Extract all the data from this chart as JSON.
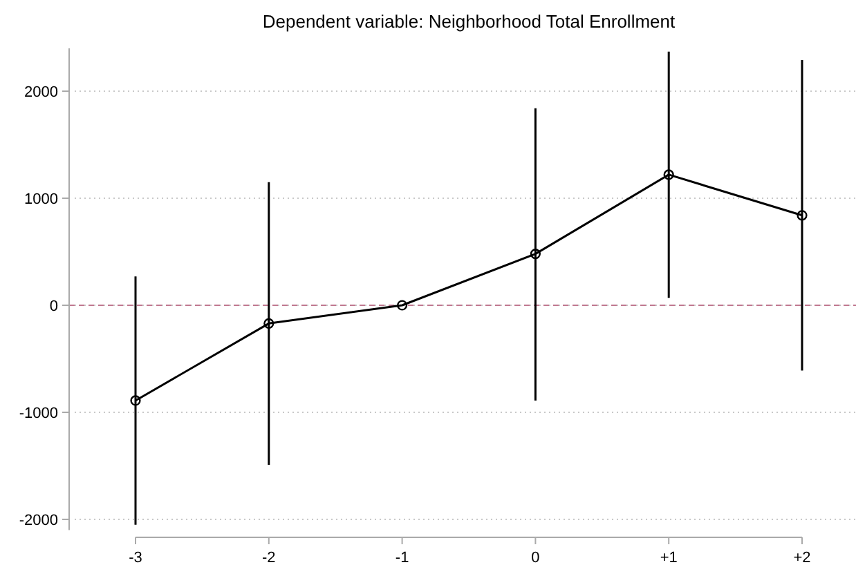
{
  "chart_data": {
    "type": "line",
    "title": "Dependent variable: Neighborhood Total Enrollment",
    "categories": [
      "-3",
      "-2",
      "-1",
      "0",
      "+1",
      "+2"
    ],
    "series": [
      {
        "color": "#000000",
        "values": [
          -890,
          -170,
          0,
          480,
          1220,
          840
        ],
        "errors": [
          [
            -2050,
            270
          ],
          [
            -1490,
            1150
          ],
          null,
          [
            -890,
            1840
          ],
          [
            70,
            2370
          ],
          [
            -610,
            2290
          ]
        ]
      }
    ],
    "ylim": [
      -2100,
      2400
    ],
    "yticks": [
      -2000,
      -1000,
      0,
      1000,
      2000
    ],
    "grid": "y",
    "marker": "circle",
    "line_style": "solid",
    "ref_lines": [
      {
        "axis": "y",
        "value": 0,
        "color": "#c07890",
        "line_style": "dashed"
      }
    ]
  }
}
